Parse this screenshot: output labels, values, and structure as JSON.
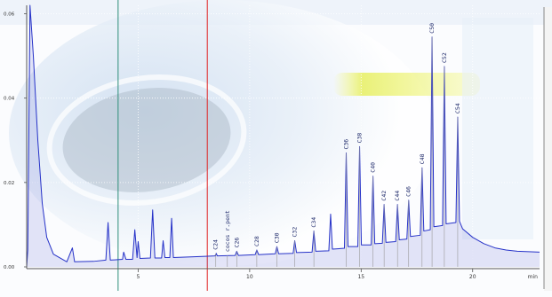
{
  "chart_data": {
    "type": "line",
    "title": "",
    "xlabel": "",
    "x_unit": "min",
    "ylabel": "",
    "xlim": [
      0,
      23
    ],
    "ylim": [
      0,
      0.062
    ],
    "x_ticks": [
      "5",
      "10",
      "15",
      "20"
    ],
    "x_tick_values": [
      5,
      10,
      15,
      20
    ],
    "y_ticks": [
      "0.00",
      "0.02",
      "0.04",
      "0.06"
    ],
    "y_tick_values": [
      0.0,
      0.02,
      0.04,
      0.06
    ],
    "grid": true,
    "markers": [
      {
        "name": "cursor-green",
        "x": 4.1,
        "color": "#2f8f7a"
      },
      {
        "name": "cursor-red",
        "x": 8.1,
        "color": "#e02020"
      }
    ],
    "series": [
      {
        "color": "#2632c8",
        "points": [
          [
            0.0,
            0.0
          ],
          [
            0.05,
            0.004
          ],
          [
            0.15,
            0.062
          ],
          [
            0.3,
            0.05
          ],
          [
            0.5,
            0.03
          ],
          [
            0.7,
            0.015
          ],
          [
            0.9,
            0.007
          ],
          [
            1.2,
            0.003
          ],
          [
            1.8,
            0.0012
          ],
          [
            2.05,
            0.0045
          ],
          [
            2.15,
            0.0012
          ],
          [
            3.0,
            0.0013
          ],
          [
            3.55,
            0.0016
          ],
          [
            3.65,
            0.0105
          ],
          [
            3.75,
            0.0016
          ],
          [
            4.3,
            0.0018
          ],
          [
            4.35,
            0.0035
          ],
          [
            4.45,
            0.0018
          ],
          [
            4.75,
            0.0018
          ],
          [
            4.85,
            0.0088
          ],
          [
            4.95,
            0.0022
          ],
          [
            5.0,
            0.006
          ],
          [
            5.08,
            0.002
          ],
          [
            5.55,
            0.0021
          ],
          [
            5.65,
            0.0135
          ],
          [
            5.75,
            0.0021
          ],
          [
            6.05,
            0.0021
          ],
          [
            6.12,
            0.0062
          ],
          [
            6.2,
            0.0022
          ],
          [
            6.42,
            0.0022
          ],
          [
            6.5,
            0.0115
          ],
          [
            6.58,
            0.0022
          ],
          [
            7.5,
            0.0024
          ],
          [
            8.0,
            0.0025
          ],
          [
            8.45,
            0.0026
          ],
          [
            8.5,
            0.0032
          ],
          [
            8.55,
            0.0026
          ],
          [
            9.35,
            0.0027
          ],
          [
            9.42,
            0.0037
          ],
          [
            9.5,
            0.0027
          ],
          [
            10.25,
            0.0029
          ],
          [
            10.32,
            0.004
          ],
          [
            10.4,
            0.0029
          ],
          [
            11.15,
            0.0031
          ],
          [
            11.22,
            0.0048
          ],
          [
            11.3,
            0.0031
          ],
          [
            11.95,
            0.0032
          ],
          [
            12.02,
            0.0062
          ],
          [
            12.1,
            0.0034
          ],
          [
            12.8,
            0.0035
          ],
          [
            12.88,
            0.0085
          ],
          [
            12.96,
            0.0037
          ],
          [
            13.55,
            0.0038
          ],
          [
            13.63,
            0.0125
          ],
          [
            13.71,
            0.0042
          ],
          [
            14.25,
            0.0044
          ],
          [
            14.33,
            0.027
          ],
          [
            14.41,
            0.0048
          ],
          [
            14.85,
            0.0048
          ],
          [
            14.93,
            0.0285
          ],
          [
            15.01,
            0.0052
          ],
          [
            15.45,
            0.0052
          ],
          [
            15.53,
            0.0215
          ],
          [
            15.61,
            0.0055
          ],
          [
            15.95,
            0.0056
          ],
          [
            16.03,
            0.0148
          ],
          [
            16.11,
            0.0058
          ],
          [
            16.55,
            0.006
          ],
          [
            16.63,
            0.0148
          ],
          [
            16.71,
            0.0064
          ],
          [
            17.05,
            0.0066
          ],
          [
            17.13,
            0.0158
          ],
          [
            17.21,
            0.0072
          ],
          [
            17.65,
            0.0075
          ],
          [
            17.73,
            0.0235
          ],
          [
            17.81,
            0.0085
          ],
          [
            18.1,
            0.0088
          ],
          [
            18.18,
            0.0545
          ],
          [
            18.26,
            0.0095
          ],
          [
            18.65,
            0.0098
          ],
          [
            18.73,
            0.0475
          ],
          [
            18.81,
            0.0102
          ],
          [
            19.25,
            0.0105
          ],
          [
            19.33,
            0.0355
          ],
          [
            19.41,
            0.0108
          ],
          [
            19.55,
            0.009
          ],
          [
            20.0,
            0.007
          ],
          [
            20.5,
            0.0055
          ],
          [
            21.0,
            0.0045
          ],
          [
            21.5,
            0.004
          ],
          [
            22.0,
            0.0037
          ],
          [
            23.0,
            0.0035
          ]
        ]
      }
    ],
    "annotations": [
      {
        "text": "C24",
        "x": 8.48
      },
      {
        "text": "cocos r.pent",
        "x": 9.0
      },
      {
        "text": "C26",
        "x": 9.42
      },
      {
        "text": "C28",
        "x": 10.32
      },
      {
        "text": "C30",
        "x": 11.22
      },
      {
        "text": "C32",
        "x": 12.02
      },
      {
        "text": "C34",
        "x": 12.88
      },
      {
        "text": "C36",
        "x": 14.33
      },
      {
        "text": "C38",
        "x": 14.93
      },
      {
        "text": "C40",
        "x": 15.53
      },
      {
        "text": "C42",
        "x": 16.03
      },
      {
        "text": "C44",
        "x": 16.63
      },
      {
        "text": "C46",
        "x": 17.13
      },
      {
        "text": "C48",
        "x": 17.73
      },
      {
        "text": "C50",
        "x": 18.18
      },
      {
        "text": "C52",
        "x": 18.73
      },
      {
        "text": "C54",
        "x": 19.33
      }
    ]
  }
}
